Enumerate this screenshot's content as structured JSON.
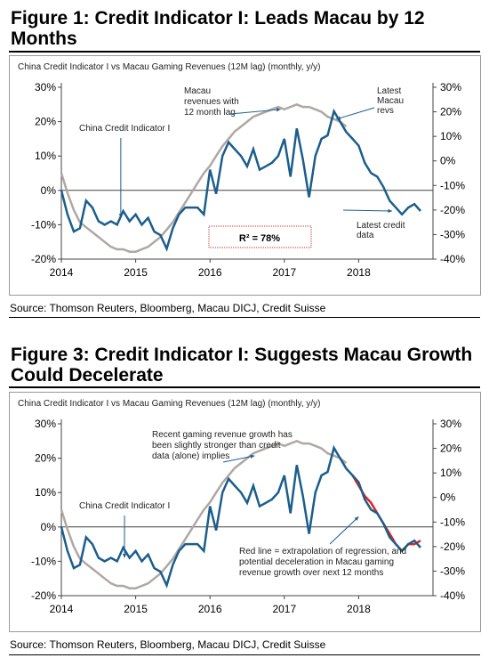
{
  "figures": [
    {
      "title": "Figure 1: Credit Indicator I: Leads Macau by 12 Months",
      "panel_title": "China Credit Indicator I vs Macau Gaming Revenues (12M lag) (monthly, y/y)",
      "source": "Source: Thomson Reuters, Bloomberg, Macau DICJ, Credit Suisse",
      "annotations": {
        "credit": "China Credit Indicator I",
        "macau": [
          "Macau",
          "revenues with",
          "12 month lag"
        ],
        "latest_macau": [
          "Latest",
          "Macau",
          "revs"
        ],
        "latest_credit": [
          "Latest credit",
          "data"
        ],
        "r2": "R² = 78%"
      }
    },
    {
      "title": "Figure 3: Credit Indicator I: Suggests Macau Growth Could Decelerate",
      "panel_title": "China Credit Indicator I vs Macau Gaming Revenues (12M lag) (monthly, y/y)",
      "source": "Source: Thomson Reuters, Bloomberg, Macau DICJ, Credit Suisse",
      "annotations": {
        "credit": "China Credit Indicator I",
        "recent": [
          "Recent gaming revenue growth has",
          "been slightly stronger than credit",
          "data (alone) implies"
        ],
        "red_line": [
          "Red line = extrapolation of regression, and",
          "potential deceleration in Macau gaming",
          "revenue growth over next 12 months"
        ]
      }
    }
  ],
  "chart_data": [
    {
      "type": "line",
      "title": "China Credit Indicator I vs Macau Gaming Revenues (12M lag) (monthly, y/y)",
      "x_ticks": [
        "2014",
        "2015",
        "2016",
        "2017",
        "2018"
      ],
      "xlim": [
        2014.0,
        2019.0
      ],
      "left_axis": {
        "ylim": [
          -20,
          30
        ],
        "ticks": [
          "-20%",
          "-10%",
          "0%",
          "10%",
          "20%",
          "30%"
        ]
      },
      "right_axis": {
        "ylim": [
          -40,
          30
        ],
        "ticks": [
          "-40%",
          "-30%",
          "-20%",
          "-10%",
          "0%",
          "10%",
          "20%",
          "30%"
        ]
      },
      "colors": {
        "credit": "#1b5e8c",
        "macau": "#b0a7a2",
        "extrapolation": "#e8211b",
        "r2_box": "#c0392b"
      },
      "series": [
        {
          "key": "credit",
          "axis": "left",
          "x": [
            2014.0,
            2014.083,
            2014.167,
            2014.25,
            2014.333,
            2014.417,
            2014.5,
            2014.583,
            2014.667,
            2014.75,
            2014.833,
            2014.917,
            2015.0,
            2015.083,
            2015.167,
            2015.25,
            2015.333,
            2015.417,
            2015.5,
            2015.583,
            2015.667,
            2015.75,
            2015.833,
            2015.917,
            2016.0,
            2016.083,
            2016.167,
            2016.25,
            2016.333,
            2016.417,
            2016.5,
            2016.583,
            2016.667,
            2016.75,
            2016.833,
            2016.917,
            2017.0,
            2017.083,
            2017.167,
            2017.25,
            2017.333,
            2017.417,
            2017.5,
            2017.583,
            2017.667,
            2017.75,
            2017.833,
            2017.917,
            2018.0,
            2018.083,
            2018.167,
            2018.25,
            2018.333,
            2018.417,
            2018.5,
            2018.583,
            2018.667,
            2018.75,
            2018.833
          ],
          "y": [
            0,
            -7,
            -12,
            -11,
            -3,
            -5,
            -9,
            -10,
            -9,
            -10,
            -6,
            -9,
            -7,
            -10,
            -8,
            -12,
            -13,
            -17,
            -11,
            -7,
            -5,
            -5,
            -5,
            -7,
            6,
            -1,
            10,
            14,
            12,
            10,
            7,
            12,
            6,
            7,
            8,
            10,
            15,
            4,
            18,
            9,
            -2,
            10,
            15,
            16,
            23,
            20,
            17,
            15,
            13,
            8,
            5,
            4,
            1,
            -3,
            -5,
            -7,
            -5,
            -4,
            -6
          ]
        },
        {
          "key": "macau",
          "axis": "right",
          "x": [
            2014.0,
            2014.083,
            2014.167,
            2014.25,
            2014.333,
            2014.417,
            2014.5,
            2014.583,
            2014.667,
            2014.75,
            2014.833,
            2014.917,
            2015.0,
            2015.083,
            2015.167,
            2015.25,
            2015.333,
            2015.417,
            2015.5,
            2015.583,
            2015.667,
            2015.75,
            2015.833,
            2015.917,
            2016.0,
            2016.083,
            2016.167,
            2016.25,
            2016.333,
            2016.417,
            2016.5,
            2016.583,
            2016.667,
            2016.75,
            2016.833,
            2016.917,
            2017.0,
            2017.083,
            2017.167,
            2017.25,
            2017.333,
            2017.417,
            2017.5,
            2017.583,
            2017.667,
            2017.75,
            2017.833
          ],
          "y": [
            -5,
            -13,
            -20,
            -25,
            -27,
            -29,
            -31,
            -33,
            -35,
            -36,
            -36,
            -37,
            -37,
            -36,
            -35,
            -33,
            -31,
            -28,
            -25,
            -21,
            -17,
            -13,
            -9,
            -5,
            -2,
            2,
            6,
            9,
            12,
            14,
            16,
            18,
            19,
            20,
            21,
            22,
            21,
            22,
            23,
            22,
            22,
            21,
            20,
            18,
            17,
            16,
            14
          ]
        },
        {
          "key": "extrapolation",
          "axis": "left",
          "x": [
            2017.917,
            2018.0,
            2018.083,
            2018.167,
            2018.25,
            2018.333,
            2018.417,
            2018.5,
            2018.583,
            2018.667,
            2018.75,
            2018.833
          ],
          "y": [
            15,
            12,
            9,
            7,
            4,
            1,
            -2,
            -5,
            -7,
            -5,
            -5,
            -4
          ]
        }
      ]
    },
    {
      "type": "line",
      "title": "China Credit Indicator I vs Macau Gaming Revenues (12M lag) (monthly, y/y)",
      "x_ticks": [
        "2014",
        "2015",
        "2016",
        "2017",
        "2018"
      ],
      "xlim": [
        2014.0,
        2019.0
      ],
      "left_axis": {
        "ylim": [
          -20,
          30
        ],
        "ticks": [
          "-20%",
          "-10%",
          "0%",
          "10%",
          "20%",
          "30%"
        ]
      },
      "right_axis": {
        "ylim": [
          -40,
          30
        ],
        "ticks": [
          "-40%",
          "-30%",
          "-20%",
          "-10%",
          "0%",
          "10%",
          "20%",
          "30%"
        ]
      },
      "colors": {
        "credit": "#1b5e8c",
        "macau": "#b0a7a2",
        "extrapolation": "#e8211b"
      }
    }
  ]
}
